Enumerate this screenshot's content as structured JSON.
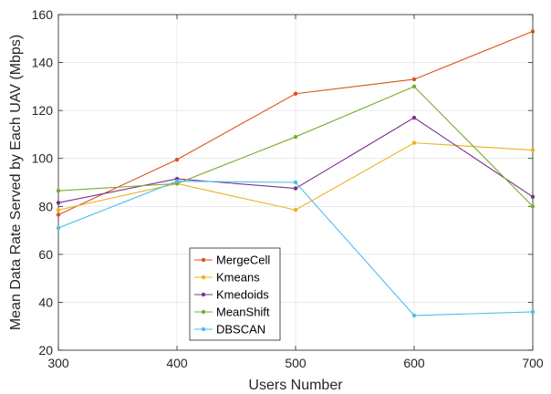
{
  "chart_data": {
    "type": "line",
    "xlabel": "Users Number",
    "ylabel": "Mean Data Rate Served by Each UAV (Mbps)",
    "xlim": [
      300,
      700
    ],
    "ylim": [
      20,
      160
    ],
    "x": [
      300,
      400,
      500,
      600,
      700
    ],
    "xticks": [
      300,
      400,
      500,
      600,
      700
    ],
    "yticks": [
      20,
      40,
      60,
      80,
      100,
      120,
      140,
      160
    ],
    "grid": true,
    "legend_position": "lower-left",
    "series": [
      {
        "name": "MergeCell",
        "color": "#d95319",
        "values": [
          76.5,
          99.5,
          127,
          133,
          153
        ]
      },
      {
        "name": "Kmeans",
        "color": "#edb120",
        "values": [
          78.5,
          89.5,
          78.5,
          106.5,
          103.5
        ]
      },
      {
        "name": "Kmedoids",
        "color": "#7e2f8e",
        "values": [
          81.5,
          91.5,
          87.5,
          117,
          84
        ]
      },
      {
        "name": "MeanShift",
        "color": "#77ac30",
        "values": [
          86.5,
          89.5,
          109,
          130,
          80
        ]
      },
      {
        "name": "DBSCAN",
        "color": "#4dbeee",
        "values": [
          71,
          90.5,
          90,
          34.5,
          36
        ]
      }
    ]
  }
}
